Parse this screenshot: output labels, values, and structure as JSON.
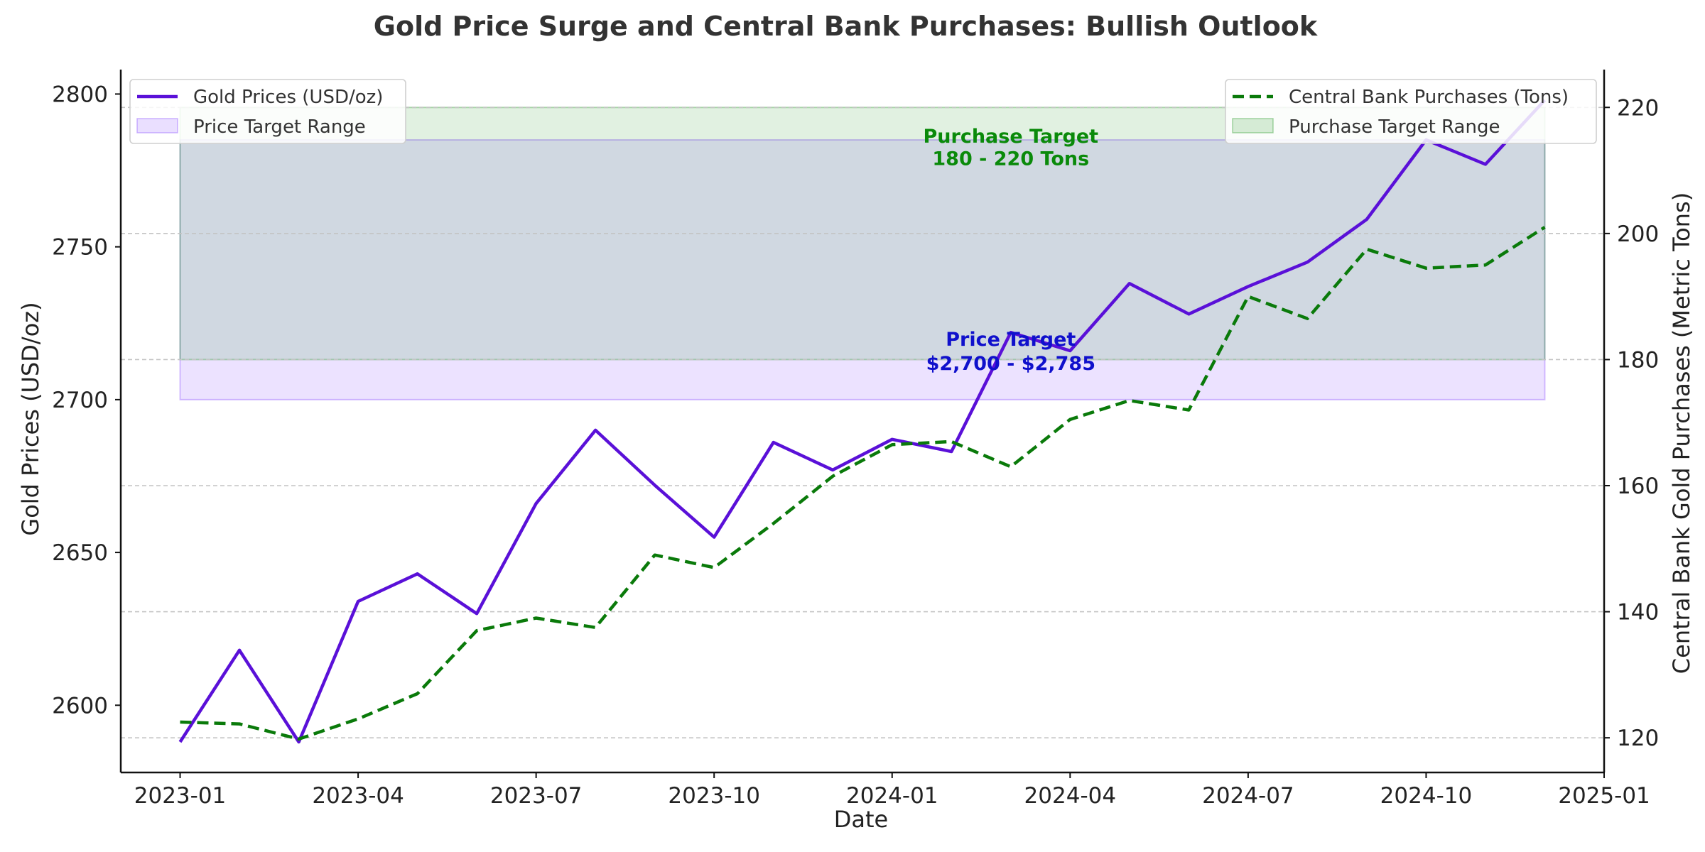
{
  "chart_data": {
    "type": "line",
    "title": "Gold Price Surge and Central Bank Purchases: Bullish Outlook",
    "xlabel": "Date",
    "ylabel": "Gold Prices (USD/oz)",
    "y2label": "Central Bank Gold Purchases (Metric Tons)",
    "x": [
      "2023-01",
      "2023-02",
      "2023-03",
      "2023-04",
      "2023-05",
      "2023-06",
      "2023-07",
      "2023-08",
      "2023-09",
      "2023-10",
      "2023-11",
      "2023-12",
      "2024-01",
      "2024-02",
      "2024-03",
      "2024-04",
      "2024-05",
      "2024-06",
      "2024-07",
      "2024-08",
      "2024-09",
      "2024-10",
      "2024-11",
      "2024-12"
    ],
    "x_ticks": [
      "2023-01",
      "2023-04",
      "2023-07",
      "2023-10",
      "2024-01",
      "2024-04",
      "2024-07",
      "2024-10",
      "2025-01"
    ],
    "xlim": [
      "2022-12",
      "2025-01"
    ],
    "ylim": [
      2578,
      2808
    ],
    "y_ticks": [
      2600,
      2650,
      2700,
      2750,
      2800
    ],
    "y2lim": [
      114.5,
      226
    ],
    "y2_ticks": [
      120,
      140,
      160,
      180,
      200,
      220
    ],
    "grid": "horizontal dashed (secondary axis)",
    "series": [
      {
        "name": "Gold Prices (USD/oz)",
        "axis": "left",
        "color": "#5a10d8",
        "style": "solid",
        "values": [
          2588,
          2618,
          2588,
          2634,
          2643,
          2630,
          2666,
          2690,
          2672,
          2655,
          2686,
          2677,
          2687,
          2683,
          2722,
          2716,
          2738,
          2728,
          2737,
          2745,
          2759,
          2785,
          2777,
          2798
        ]
      },
      {
        "name": "Central Bank Purchases (Tons)",
        "axis": "right",
        "color": "#0a7a0a",
        "style": "dashed",
        "values": [
          122.5,
          122.2,
          119.8,
          123.0,
          127.0,
          137.0,
          139.0,
          137.5,
          149.0,
          147.0,
          154.0,
          161.5,
          166.5,
          167.0,
          163.0,
          170.5,
          173.5,
          172.0,
          190.0,
          186.5,
          197.5,
          194.5,
          195.0,
          201.0
        ]
      }
    ],
    "bands": [
      {
        "name": "Price Target Range",
        "axis": "left",
        "range": [
          2700,
          2785
        ],
        "color": "#8a4dff",
        "opacity": 0.16
      },
      {
        "name": "Purchase Target Range",
        "axis": "right",
        "range": [
          180,
          220
        ],
        "color": "#2e9a2e",
        "opacity": 0.14
      }
    ],
    "annotations": [
      {
        "lines": [
          "Purchase Target",
          "180 - 220 Tons"
        ],
        "color": "#0a8a0a",
        "x": "2024-03",
        "axis": "right",
        "y": [
          215.5,
          212
        ]
      },
      {
        "lines": [
          "Price Target",
          "$2,700 - $2,785"
        ],
        "color": "#1010cc",
        "x": "2024-03",
        "axis": "left",
        "y": [
          2720,
          2712
        ]
      }
    ],
    "legends": [
      {
        "placement": "top-left",
        "entries": [
          "Gold Prices (USD/oz)",
          "Price Target Range"
        ]
      },
      {
        "placement": "top-right",
        "entries": [
          "Central Bank Purchases (Tons)",
          "Purchase Target Range"
        ]
      }
    ]
  }
}
